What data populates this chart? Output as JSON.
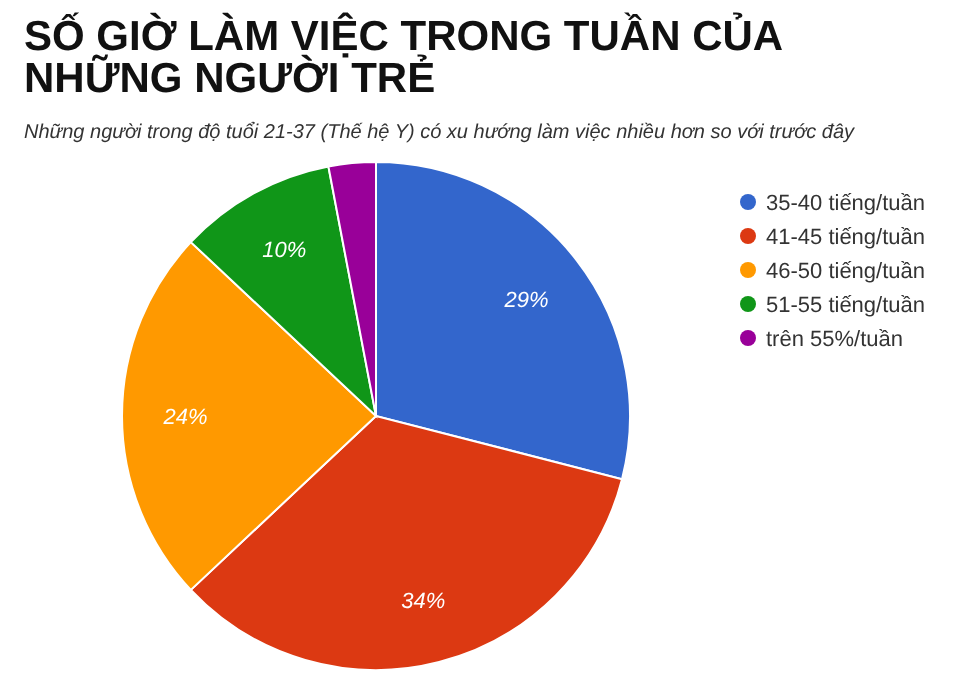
{
  "chart_data": {
    "type": "pie",
    "title": "SỐ GIỜ LÀM VIỆC TRONG TUẦN CỦA NHỮNG NGƯỜI TRẺ",
    "subtitle": "Những người trong độ tuổi 21-37 (Thế hệ Y) có xu hướng làm việc nhiều hơn so với trước đây",
    "categories": [
      "35-40 tiếng/tuần",
      "41-45 tiếng/tuần",
      "46-50 tiếng/tuần",
      "51-55 tiếng/tuần",
      "trên 55%/tuần"
    ],
    "values": [
      29,
      34,
      24,
      10,
      3
    ],
    "colors": [
      "#3366cc",
      "#dc3912",
      "#ff9900",
      "#109618",
      "#990099"
    ],
    "value_labels": [
      "29%",
      "34%",
      "24%",
      "10%",
      null
    ],
    "legend": "right"
  }
}
